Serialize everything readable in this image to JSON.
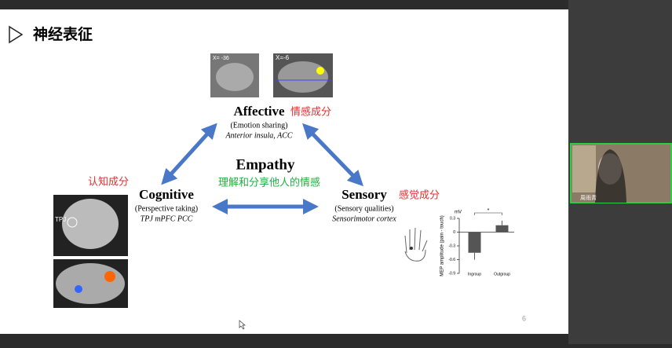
{
  "slide": {
    "title": "神经表征",
    "page_number": "6",
    "center": {
      "title": "Empathy",
      "subtitle": "理解和分享他人的情感"
    },
    "affective": {
      "title": "Affective",
      "cn": "情感成分",
      "role": "(Emotion sharing)",
      "regions": "Anterior insula, ACC",
      "scan_labels": [
        "X= -36",
        "X=-6"
      ]
    },
    "cognitive": {
      "title": "Cognitive",
      "cn": "认知成分",
      "role": "(Perspective taking)",
      "regions": "TPJ mPFC PCC",
      "scan_label": "TPJ"
    },
    "sensory": {
      "title": "Sensory",
      "cn": "感觉成分",
      "role": "(Sensory qualities)",
      "regions": "Sensorimotor cortex"
    },
    "mep_chart": {
      "type": "bar",
      "y_label": "MEP amplitude (pain - touch)",
      "unit": "mV",
      "significance": "*",
      "categories": [
        "Ingroup",
        "Outgroup"
      ],
      "values": [
        -0.45,
        0.15
      ],
      "errors": [
        0.15,
        0.1
      ],
      "color": "#555555",
      "ylim": [
        -0.9,
        0.3
      ],
      "yticks": [
        -0.9,
        -0.6,
        -0.3,
        0,
        0.3
      ]
    }
  },
  "video": {
    "participant": "周雨青"
  }
}
